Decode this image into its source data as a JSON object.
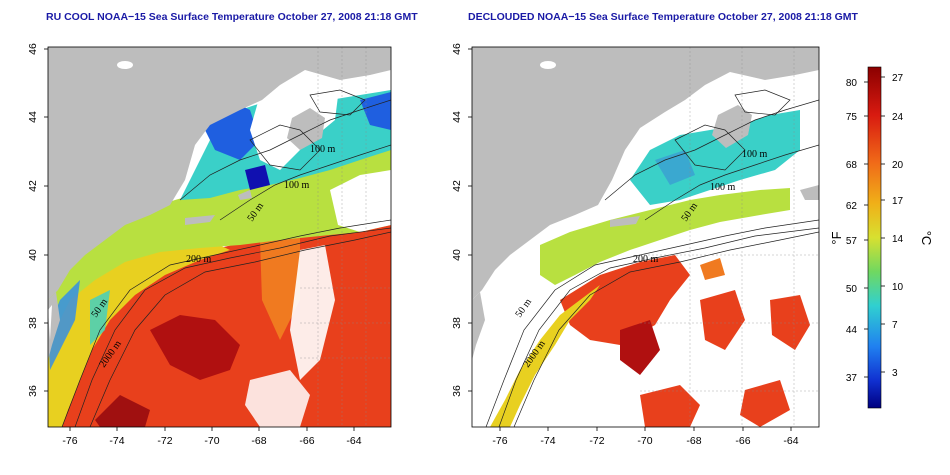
{
  "maps": [
    {
      "id": "left",
      "title": "RU COOL NOAA−15 Sea Surface Temperature October 27, 2008 21:18 GMT",
      "x_ticks": [
        "-76",
        "-74",
        "-72",
        "-70",
        "-68",
        "-66",
        "-64"
      ],
      "y_ticks": [
        "36",
        "38",
        "40",
        "42",
        "44",
        "46"
      ],
      "contour_labels": [
        "100 m",
        "100 m",
        "50 m",
        "200 m",
        "50 m",
        "2000 m"
      ]
    },
    {
      "id": "right",
      "title": "DECLOUDED NOAA−15 Sea Surface Temperature October 27, 2008 21:18 GMT",
      "x_ticks": [
        "-76",
        "-74",
        "-72",
        "-70",
        "-68",
        "-66",
        "-64"
      ],
      "y_ticks": [
        "36",
        "38",
        "40",
        "42",
        "44",
        "46"
      ],
      "contour_labels": [
        "100 m",
        "100 m",
        "50 m",
        "200 m",
        "50 m",
        "2000 m"
      ]
    }
  ],
  "colorbar": {
    "fahrenheit_label": "°F",
    "celsius_label": "°C",
    "fahrenheit_ticks": [
      "80",
      "75",
      "68",
      "62",
      "57",
      "50",
      "44",
      "37"
    ],
    "celsius_ticks": [
      "27",
      "24",
      "20",
      "17",
      "14",
      "10",
      "7",
      "3"
    ]
  },
  "colors": {
    "land": "#bdbdbd",
    "cloud": "#ffffff",
    "title": "#1a1aa6",
    "warm": "#e8301c",
    "hot": "#b01010",
    "orange": "#f07a20",
    "yellow": "#e8d020",
    "green": "#7ad65a",
    "cyan": "#3ad0c8",
    "blue": "#1f5fe0",
    "deep_blue": "#1010b0"
  }
}
